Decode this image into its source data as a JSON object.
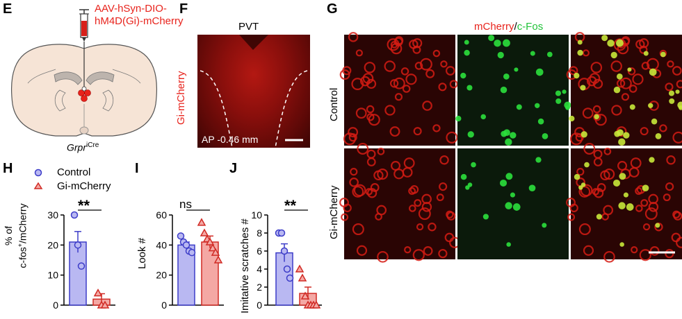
{
  "panels": {
    "E": {
      "letter": "E",
      "virus_line1": "AAV-hSyn-DIO-",
      "virus_line2": "hM4D(Gi)-mCherry",
      "genotype": "Grpr",
      "genotype_sup": "iCre"
    },
    "F": {
      "letter": "F",
      "title": "PVT",
      "side_label": "Gi-mCherry",
      "coord": "AP -0.46 mm"
    },
    "G": {
      "letter": "G",
      "header_red": "mCherry",
      "header_slash": "/",
      "header_green": "c-Fos",
      "row1": "Control",
      "row2": "Gi-mCherry"
    },
    "H": {
      "letter": "H",
      "legend_control": "Control",
      "legend_gi": "Gi-mCherry",
      "ylabel_line1": "% of",
      "ylabel_line2a": "c-fos",
      "ylabel_sup": "+",
      "ylabel_line2b": "/mCherry",
      "sig": "**"
    },
    "I": {
      "letter": "I",
      "ylabel": "Look #",
      "sig": "ns"
    },
    "J": {
      "letter": "J",
      "ylabel": "Imitative scratches #",
      "sig": "**"
    }
  },
  "colors": {
    "control_fill": "#b9b8f2",
    "control_edge": "#3c3cc8",
    "gi_fill": "#f4a8a4",
    "gi_edge": "#d02a24",
    "brain_fill": "#f6e4d6",
    "red": "#e8231c",
    "green": "#22c33a"
  },
  "chart_data": [
    {
      "id": "H",
      "type": "bar",
      "categories": [
        "Control",
        "Gi-mCherry"
      ],
      "values": [
        21,
        2
      ],
      "sem": [
        3.5,
        1.8
      ],
      "points": [
        [
          30,
          20,
          13
        ],
        [
          4,
          0,
          0
        ]
      ],
      "ylim": [
        0,
        30
      ],
      "yticks": [
        0,
        10,
        20,
        30
      ]
    },
    {
      "id": "I",
      "type": "bar",
      "categories": [
        "Control",
        "Gi-mCherry"
      ],
      "values": [
        40,
        42
      ],
      "sem": [
        2,
        4
      ],
      "points": [
        [
          46,
          42,
          40,
          36,
          35
        ],
        [
          55,
          48,
          44,
          42,
          38,
          35,
          30
        ]
      ],
      "ylim": [
        0,
        60
      ],
      "yticks": [
        0,
        20,
        40,
        60
      ]
    },
    {
      "id": "J",
      "type": "bar",
      "categories": [
        "Control",
        "Gi-mCherry"
      ],
      "values": [
        5.8,
        1.3
      ],
      "sem": [
        1.0,
        0.7
      ],
      "points": [
        [
          8,
          8,
          6,
          4,
          3
        ],
        [
          4,
          3,
          1,
          0,
          0,
          0,
          0
        ]
      ],
      "ylim": [
        0,
        10
      ],
      "yticks": [
        0,
        2,
        4,
        6,
        8,
        10
      ]
    }
  ]
}
